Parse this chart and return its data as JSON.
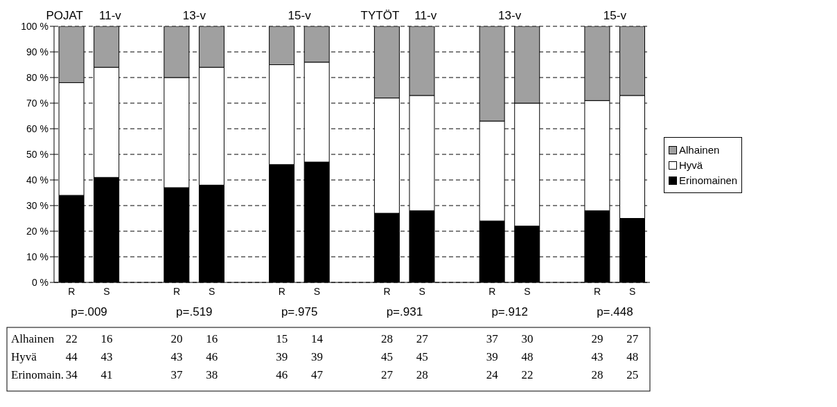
{
  "chart_data": {
    "type": "bar",
    "stacked": true,
    "categories": [
      "R",
      "S",
      null,
      "R",
      "S",
      null,
      "R",
      "S",
      null,
      "R",
      "S",
      null,
      "R",
      "S",
      null,
      "R",
      "S"
    ],
    "series": [
      {
        "name": "Erinomainen",
        "color": "#000000",
        "values": [
          34,
          41,
          null,
          37,
          38,
          null,
          46,
          47,
          null,
          27,
          28,
          null,
          24,
          22,
          null,
          28,
          25
        ]
      },
      {
        "name": "Hyvä",
        "color": "#ffffff",
        "values": [
          44,
          43,
          null,
          43,
          46,
          null,
          39,
          39,
          null,
          45,
          45,
          null,
          39,
          48,
          null,
          43,
          48
        ]
      },
      {
        "name": "Alhainen",
        "color": "#a0a0a0",
        "values": [
          22,
          16,
          null,
          20,
          16,
          null,
          15,
          14,
          null,
          28,
          27,
          null,
          37,
          30,
          null,
          29,
          27
        ]
      }
    ],
    "ylim": [
      0,
      100
    ],
    "yticks": [
      {
        "value": 0,
        "label": "0 %"
      },
      {
        "value": 10,
        "label": "10 %"
      },
      {
        "value": 20,
        "label": "20 %"
      },
      {
        "value": 30,
        "label": "30 %"
      },
      {
        "value": 40,
        "label": "40 %"
      },
      {
        "value": 50,
        "label": "50 %"
      },
      {
        "value": 60,
        "label": "60 %"
      },
      {
        "value": 70,
        "label": "70 %"
      },
      {
        "value": 80,
        "label": "80 %"
      },
      {
        "value": 90,
        "label": "90 %"
      },
      {
        "value": 100,
        "label": "100 %"
      }
    ],
    "grid": "y",
    "line_style": "dashed",
    "legend": "right",
    "data_labels": true,
    "annotations": [
      "POJAT",
      "11-v",
      "13-v",
      "15-v",
      "TYTÖT",
      "11-v",
      "13-v",
      "15-v",
      "p=.009",
      "p=.519",
      "p=.975",
      "p=.931",
      "p=.912",
      "p=.448",
      "Alhainen",
      "Hyvä",
      "Erinomain."
    ]
  }
}
